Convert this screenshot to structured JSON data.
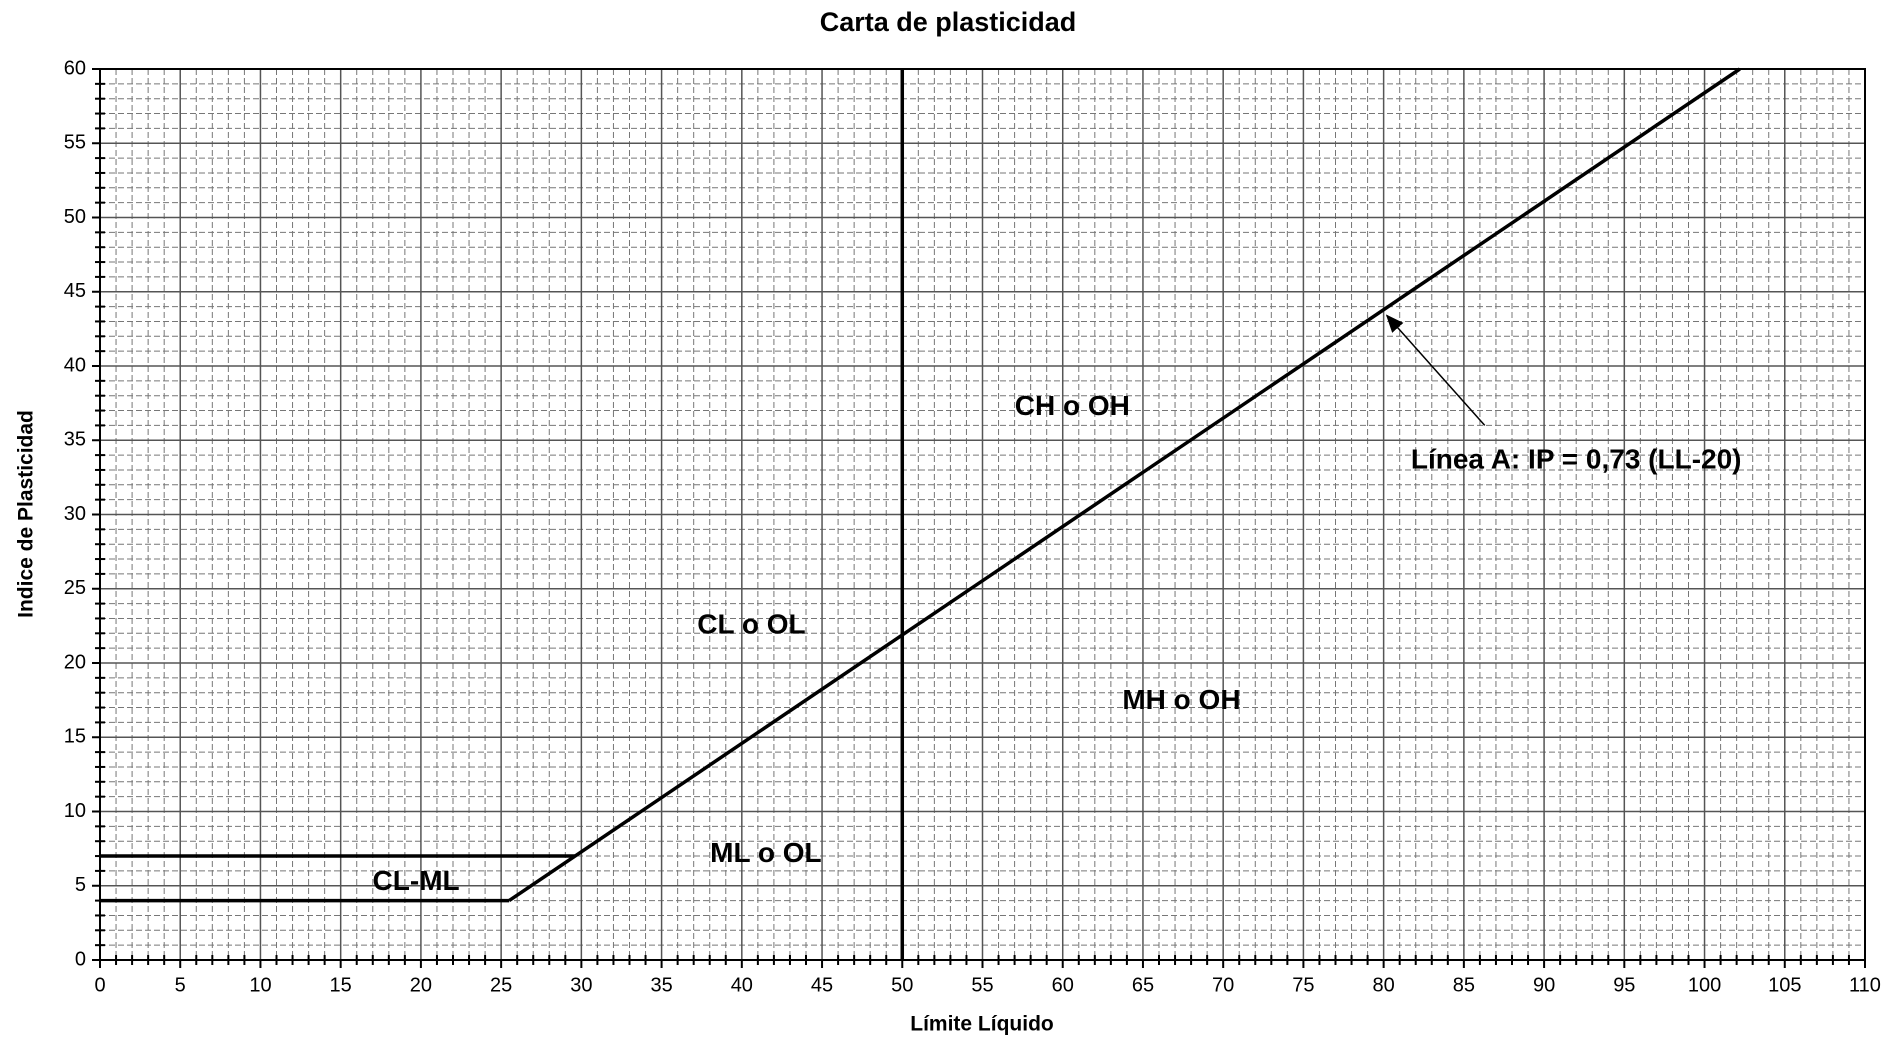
{
  "chart_data": {
    "type": "line",
    "title": "Carta de plasticidad",
    "x_label": "Límite Líquido",
    "y_label": "Indice de Plasticidad",
    "xlim": [
      0,
      110
    ],
    "ylim": [
      0,
      60
    ],
    "xticks": [
      0,
      5,
      10,
      15,
      20,
      25,
      30,
      35,
      40,
      45,
      50,
      55,
      60,
      65,
      70,
      75,
      80,
      85,
      90,
      95,
      100,
      105,
      110
    ],
    "yticks": [
      0,
      5,
      10,
      15,
      20,
      25,
      30,
      35,
      40,
      45,
      50,
      55,
      60
    ],
    "grid": true,
    "minor_divisions": 5,
    "series": [
      {
        "color": "#000000",
        "x": [
          25.5,
          102.2
        ],
        "values": [
          4,
          60
        ]
      },
      {
        "color": "#000000",
        "x": [
          50,
          50
        ],
        "values": [
          0,
          60
        ]
      },
      {
        "color": "#000000",
        "x": [
          0,
          25.5
        ],
        "values": [
          4,
          4
        ]
      },
      {
        "color": "#000000",
        "x": [
          0,
          29.6
        ],
        "values": [
          7,
          7
        ]
      }
    ],
    "annotations": [
      "CH o OH",
      "CL o OL",
      "MH o OH",
      "ML o OL",
      "CL-ML",
      "Línea A: IP = 0,73 (LL-20)"
    ]
  }
}
